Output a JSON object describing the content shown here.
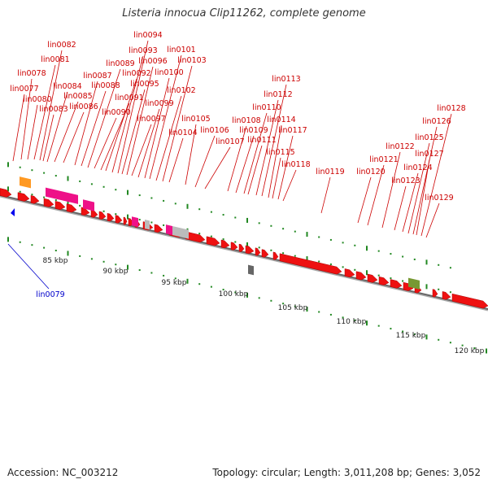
{
  "title": "Listeria innocua Clip11262, complete genome",
  "footer": {
    "accession": "Accession: NC_003212",
    "summary": "Topology: circular; Length: 3,011,208 bp; Genes: 3,052"
  },
  "colors": {
    "cds": "#ee1111",
    "rna": "#ee1188",
    "misc": "#ff9922",
    "other": "#bbbbbb",
    "dark": "#666666",
    "olive": "#779933",
    "tick": "#228822",
    "label_forward": "#cc0000",
    "label_reverse": "#0000cc"
  },
  "scale": {
    "labels": [
      "85 kbp",
      "90 kbp",
      "95 kbp",
      "100 kbp",
      "105 kbp",
      "110 kbp",
      "115 kbp",
      "120 kbp"
    ]
  },
  "gene_labels": [
    "lin0077",
    "lin0078",
    "lin0080",
    "lin0081",
    "lin0082",
    "lin0083",
    "lin0084",
    "lin0085",
    "lin0086",
    "lin0087",
    "lin0088",
    "lin0089",
    "lin0090",
    "lin0091",
    "lin0092",
    "lin0093",
    "lin0094",
    "lin0095",
    "lin0096",
    "lin0097",
    "lin0099",
    "lin0100",
    "lin0101",
    "lin0102",
    "lin0103",
    "lin0104",
    "lin0105",
    "lin0106",
    "lin0107",
    "lin0108",
    "lin0109",
    "lin0110",
    "lin0111",
    "lin0112",
    "lin0113",
    "lin0114",
    "lin0115",
    "lin0117",
    "lin0118",
    "lin0119",
    "lin0120",
    "lin0121",
    "lin0122",
    "lin0123",
    "lin0124",
    "lin0125",
    "lin0126",
    "lin0127",
    "lin0128",
    "lin0129"
  ],
  "reverse_labels": [
    "lin0079"
  ]
}
